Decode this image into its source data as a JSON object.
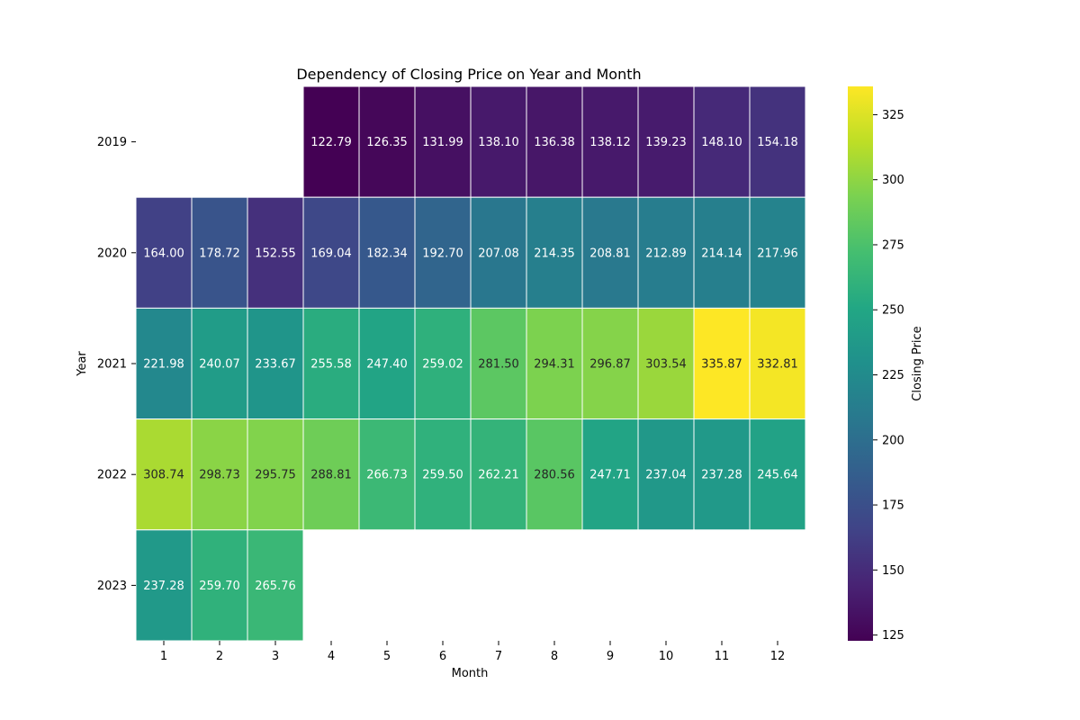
{
  "chart_data": {
    "type": "heatmap",
    "title": "Dependency of Closing Price on Year and Month",
    "xlabel": "Month",
    "ylabel": "Year",
    "colorbar_label": "Closing Price",
    "colormap": "viridis",
    "x_categories": [
      "1",
      "2",
      "3",
      "4",
      "5",
      "6",
      "7",
      "8",
      "9",
      "10",
      "11",
      "12"
    ],
    "y_categories": [
      "2019",
      "2020",
      "2021",
      "2022",
      "2023"
    ],
    "values": [
      [
        null,
        null,
        null,
        122.79,
        126.35,
        131.99,
        138.1,
        136.38,
        138.12,
        139.23,
        148.1,
        154.18
      ],
      [
        164.0,
        178.72,
        152.55,
        169.04,
        182.34,
        192.7,
        207.08,
        214.35,
        208.81,
        212.89,
        214.14,
        217.96
      ],
      [
        221.98,
        240.07,
        233.67,
        255.58,
        247.4,
        259.02,
        281.5,
        294.31,
        296.87,
        303.54,
        335.87,
        332.81
      ],
      [
        308.74,
        298.73,
        295.75,
        288.81,
        266.73,
        259.5,
        262.21,
        280.56,
        247.71,
        237.04,
        237.28,
        245.64
      ],
      [
        237.28,
        259.7,
        265.76,
        null,
        null,
        null,
        null,
        null,
        null,
        null,
        null,
        null
      ]
    ],
    "value_range": [
      122.79,
      335.87
    ],
    "colorbar_ticks": [
      125,
      150,
      175,
      200,
      225,
      250,
      275,
      300,
      325
    ],
    "annotations": true,
    "value_format": "2 decimals"
  }
}
